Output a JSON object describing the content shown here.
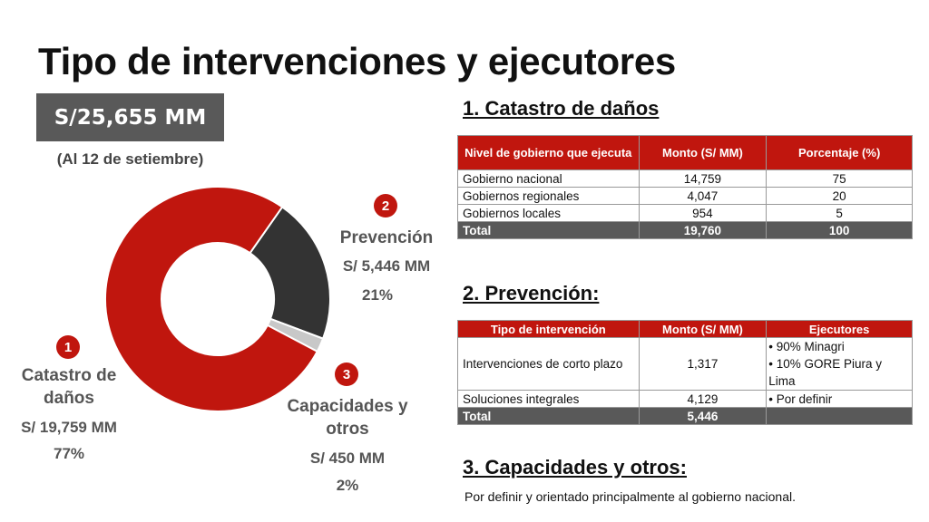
{
  "title": "Tipo de intervenciones y ejecutores",
  "total_box": "S/25,655 MM",
  "as_of": "(Al 12 de setiembre)",
  "colors": {
    "red": "#c0160e",
    "dark": "#333333",
    "light": "#c8c8c8",
    "header_gray": "#595959"
  },
  "chart_data": {
    "type": "pie",
    "variant": "donut",
    "title": "",
    "slices": [
      {
        "number": "1",
        "name": "Catastro de daños",
        "amount": "S/ 19,759 MM",
        "pct_label": "77%",
        "value": 77,
        "color": "#c0160e"
      },
      {
        "number": "2",
        "name": "Prevención",
        "amount": "S/ 5,446 MM",
        "pct_label": "21%",
        "value": 21,
        "color": "#333333"
      },
      {
        "number": "3",
        "name": "Capacidades y otros",
        "amount": "S/ 450 MM",
        "pct_label": "2%",
        "value": 2,
        "color": "#c8c8c8"
      }
    ]
  },
  "section1": {
    "heading": "1. Catastro de daños",
    "headers": [
      "Nivel de gobierno que ejecuta",
      "Monto (S/ MM)",
      "Porcentaje (%)"
    ],
    "rows": [
      [
        "Gobierno nacional",
        "14,759",
        "75"
      ],
      [
        "Gobiernos regionales",
        "4,047",
        "20"
      ],
      [
        "Gobiernos locales",
        "954",
        "5"
      ]
    ],
    "total": [
      "Total",
      "19,760",
      "100"
    ]
  },
  "section2": {
    "heading": "2. Prevención:",
    "headers": [
      "Tipo de intervención",
      "Monto (S/ MM)",
      "Ejecutores"
    ],
    "row1": {
      "tipo": "Intervenciones de corto plazo",
      "monto": "1,317",
      "ejecutores": [
        "90% Minagri",
        "10% GORE Piura y Lima"
      ]
    },
    "row2": {
      "tipo": "Soluciones integrales",
      "monto": "4,129",
      "ejecutores": [
        "Por definir"
      ]
    },
    "total": [
      "Total",
      "5,446",
      ""
    ]
  },
  "section3": {
    "heading": "3. Capacidades y otros:",
    "note": "Por definir y orientado principalmente al gobierno nacional."
  }
}
